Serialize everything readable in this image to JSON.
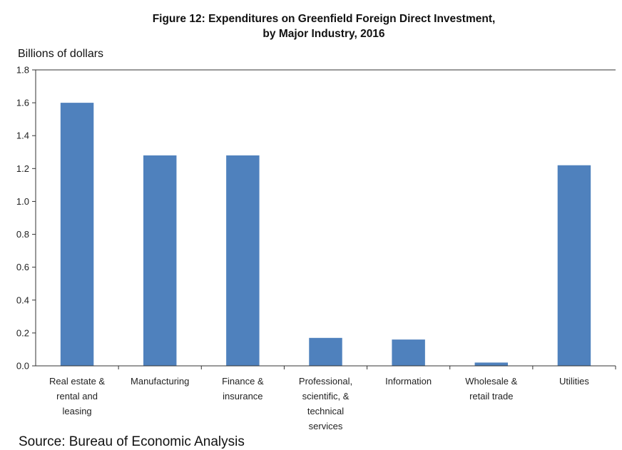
{
  "chart_data": {
    "type": "bar",
    "title_lines": [
      "Figure 12: Expenditures on Greenfield Foreign Direct Investment,",
      "by Major Industry, 2016"
    ],
    "ylabel": "Billions of dollars",
    "xlabel": "",
    "ylim": [
      0,
      1.8
    ],
    "yticks": [
      "0.0",
      "0.2",
      "0.4",
      "0.6",
      "0.8",
      "1.0",
      "1.2",
      "1.4",
      "1.6",
      "1.8"
    ],
    "categories": [
      "Real estate & rental and leasing",
      "Manufacturing",
      "Finance & insurance",
      "Professional, scientific, & technical services",
      "Information",
      "Wholesale & retail trade",
      "Utilities"
    ],
    "category_label_lines": [
      [
        "Real estate &",
        "rental and",
        "leasing"
      ],
      [
        "Manufacturing"
      ],
      [
        "Finance &",
        "insurance"
      ],
      [
        "Professional,",
        "scientific, &",
        "technical",
        "services"
      ],
      [
        "Information"
      ],
      [
        "Wholesale &",
        "retail trade"
      ],
      [
        "Utilities"
      ]
    ],
    "values": [
      1.6,
      1.28,
      1.28,
      0.17,
      0.16,
      0.02,
      1.22
    ],
    "bar_color": "#4F81BD",
    "grid": false,
    "legend": "none",
    "source": "Source: Bureau of Economic Analysis"
  }
}
